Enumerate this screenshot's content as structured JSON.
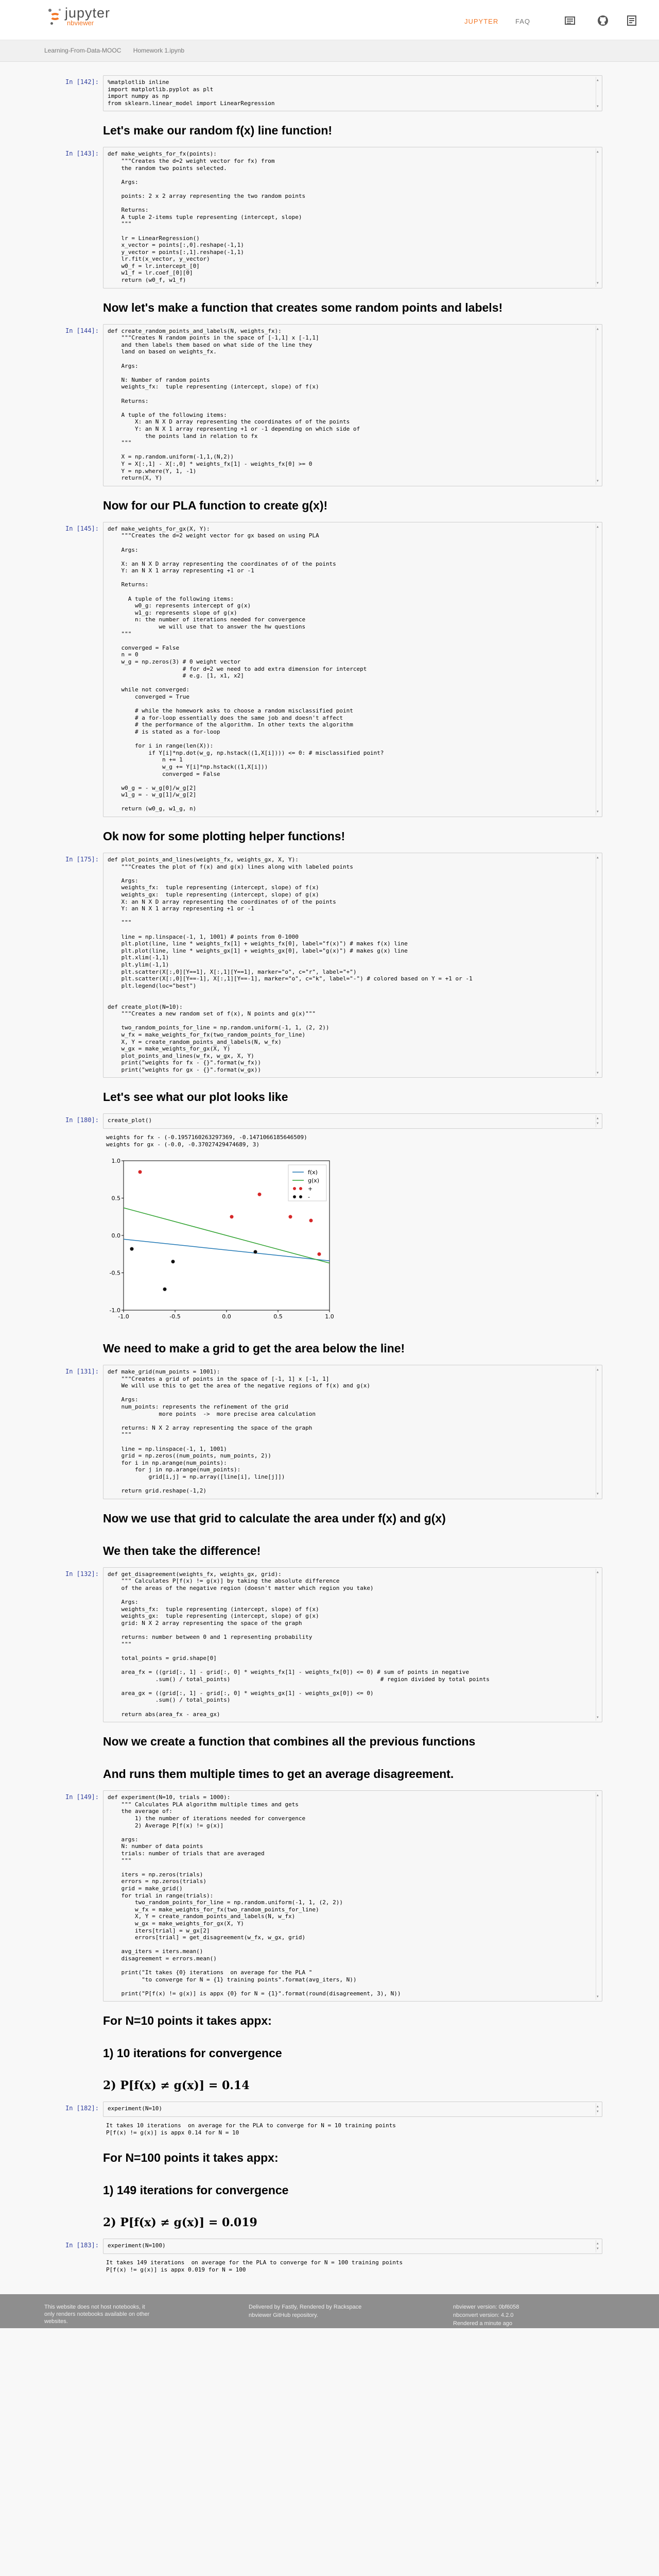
{
  "header": {
    "brand": "jupyter",
    "brand_sub": "nbviewer",
    "nav": [
      "JUPYTER",
      "FAQ"
    ],
    "icons": [
      "download-icon",
      "github-icon",
      "notebook-icon"
    ]
  },
  "breadcrumb": [
    "Learning-From-Data-MOOC",
    "Homework 1.ipynb"
  ],
  "cells": [
    {
      "type": "code",
      "prompt": "In [142]:",
      "code": "%matplotlib inline\nimport matplotlib.pyplot as plt\nimport numpy as np\nfrom sklearn.linear_model import LinearRegression"
    },
    {
      "type": "md",
      "text": "Let's make our random f(x) line function!"
    },
    {
      "type": "code",
      "prompt": "In [143]:",
      "code": "def make_weights_for_fx(points):\n    \"\"\"Creates the d=2 weight vector for fx) from\n    the random two points selected.\n\n    Args:\n\n    points: 2 x 2 array representing the two random points\n\n    Returns:\n    A tuple 2-items tuple representing (intercept, slope)\n    \"\"\"\n\n    lr = LinearRegression()\n    x_vector = points[:,0].reshape(-1,1)\n    y_vector = points[:,1].reshape(-1,1)\n    lr.fit(x_vector, y_vector)\n    w0_f = lr.intercept_[0]\n    w1_f = lr.coef_[0][0]\n    return (w0_f, w1_f)"
    },
    {
      "type": "md",
      "text": "Now let's make a function that creates some random points and labels!"
    },
    {
      "type": "code",
      "prompt": "In [144]:",
      "code": "def create_random_points_and_labels(N, weights_fx):\n    \"\"\"Creates N random points in the space of [-1,1] x [-1,1]\n    and then labels them based on what side of the line they\n    land on based on weights_fx.\n\n    Args:\n\n    N: Number of random points\n    weights_fx:  tuple representing (intercept, slope) of f(x)\n\n    Returns:\n\n    A tuple of the following items:\n        X: an N X D array representing the coordinates of of the points\n        Y: an N X 1 array representing +1 or -1 depending on which side of\n           the points land in relation to fx\n    \"\"\"\n\n    X = np.random.uniform(-1,1,(N,2))\n    Y = X[:,1] - X[:,0] * weights_fx[1] - weights_fx[0] >= 0\n    Y = np.where(Y, 1, -1)\n    return(X, Y)"
    },
    {
      "type": "md",
      "text": "Now for our PLA function to create g(x)!"
    },
    {
      "type": "code",
      "prompt": "In [145]:",
      "code": "def make_weights_for_gx(X, Y):\n    \"\"\"Creates the d=2 weight vector for gx based on using PLA\n\n    Args:\n\n    X: an N X D array representing the coordinates of of the points\n    Y: an N X 1 array representing +1 or -1\n\n    Returns:\n\n      A tuple of the following items:\n        w0_g: represents intercept of g(x)\n        w1_g: represents slope of g(x)\n        n: the number of iterations needed for convergence\n               we will use that to answer the hw questions\n    \"\"\"\n\n    converged = False\n    n = 0\n    w_g = np.zeros(3) # 0 weight vector\n                      # for d=2 we need to add extra dimension for intercept\n                      # e.g. [1, x1, x2]\n\n    while not converged:\n        converged = True\n\n        # while the homework asks to choose a random misclassified point\n        # a for-loop essentially does the same job and doesn't affect\n        # the performance of the algorithm. In other texts the algorithm\n        # is stated as a for-loop\n\n        for i in range(len(X)):\n            if Y[i]*np.dot(w_g, np.hstack((1,X[i]))) <= 0: # misclassified point?\n                n += 1\n                w_g += Y[i]*np.hstack((1,X[i]))\n                converged = False\n\n    w0_g = - w_g[0]/w_g[2]\n    w1_g = - w_g[1]/w_g[2]\n\n    return (w0_g, w1_g, n)"
    },
    {
      "type": "md",
      "text": "Ok now for some plotting helper functions!"
    },
    {
      "type": "code",
      "prompt": "In [175]:",
      "code": "def plot_points_and_lines(weights_fx, weights_gx, X, Y):\n    \"\"\"Creates the plot of f(x) and g(x) lines along with labeled points\n\n    Args:\n    weights_fx:  tuple representing (intercept, slope) of f(x)\n    weights_gx:  tuple representing (intercept, slope) of g(x)\n    X: an N X D array representing the coordinates of of the points\n    Y: an N X 1 array representing +1 or -1\n\n    \"\"\"\n\n    line = np.linspace(-1, 1, 1001) # points from 0-1000\n    plt.plot(line, line * weights_fx[1] + weights_fx[0], label=\"f(x)\") # makes f(x) line\n    plt.plot(line, line * weights_gx[1] + weights_gx[0], label=\"g(x)\") # makes g(x) line\n    plt.xlim(-1,1)\n    plt.ylim(-1,1)\n    plt.scatter(X[:,0][Y==1], X[:,1][Y==1], marker=\"o\", c=\"r\", label=\"+\")\n    plt.scatter(X[:,0][Y==-1], X[:,1][Y==-1], marker=\"o\", c=\"k\", label=\"-\") # colored based on Y = +1 or -1\n    plt.legend(loc=\"best\")\n\n\ndef create_plot(N=10):\n    \"\"\"Creates a new random set of f(x), N points and g(x)\"\"\"\n\n    two_random_points_for_line = np.random.uniform(-1, 1, (2, 2))\n    w_fx = make_weights_for_fx(two_random_points_for_line)\n    X, Y = create_random_points_and_labels(N, w_fx)\n    w_gx = make_weights_for_gx(X, Y)\n    plot_points_and_lines(w_fx, w_gx, X, Y)\n    print(\"weights for fx - {}\".format(w_fx))\n    print(\"weights for gx - {}\".format(w_gx))"
    },
    {
      "type": "md",
      "text": "Let's see what our plot looks like"
    },
    {
      "type": "code",
      "prompt": "In [180]:",
      "code": "create_plot()"
    },
    {
      "type": "output",
      "prompt": "",
      "text": "weights for fx - (-0.1957160263297369, -0.1471066185646509)\nweights for gx - (-0.0, -0.37027429474689, 3)"
    },
    {
      "type": "plot"
    },
    {
      "type": "md",
      "text": "We need to make a grid to get the area below the line!"
    },
    {
      "type": "code",
      "prompt": "In [131]:",
      "code": "def make_grid(num_points = 1001):\n    \"\"\"Creates a grid of points in the space of [-1, 1] x [-1, 1]\n    We will use this to get the area of the negative regions of f(x) and g(x)\n\n    Args:\n    num_points: represents the refinement of the grid\n               more points  ->  more precise area calculation\n\n    returns: N X 2 array representing the space of the graph\n    \"\"\"\n\n    line = np.linspace(-1, 1, 1001)\n    grid = np.zeros((num_points, num_points, 2))\n    for i in np.arange(num_points):\n        for j in np.arange(num_points):\n            grid[i,j] = np.array([line[i], line[j]])\n\n    return grid.reshape(-1,2)"
    },
    {
      "type": "md",
      "text": "Now we use that grid to calculate the area under f(x) and g(x)"
    },
    {
      "type": "md",
      "text": "We then take the difference!"
    },
    {
      "type": "code",
      "prompt": "In [132]:",
      "code": "def get_disagreement(weights_fx, weights_gx, grid):\n    \"\"\" Calculates P[f(x) != g(x)] by taking the absolute difference\n    of the areas of the negative region (doesn't matter which region you take)\n\n    Args:\n    weights_fx:  tuple representing (intercept, slope) of f(x)\n    weights_gx:  tuple representing (intercept, slope) of g(x)\n    grid: N X 2 array representing the space of the graph\n\n    returns: number between 0 and 1 representing probability\n    \"\"\"\n\n    total_points = grid.shape[0]\n\n    area_fx = ((grid[:, 1] - grid[:, 0] * weights_fx[1] - weights_fx[0]) <= 0) # sum of points in negative\n              .sum() / total_points)                                            # region divided by total points\n\n    area_gx = ((grid[:, 1] - grid[:, 0] * weights_gx[1] - weights_gx[0]) <= 0)\n              .sum() / total_points)\n\n    return abs(area_fx - area_gx)"
    },
    {
      "type": "md",
      "text": "Now we create a function that combines all the previous functions"
    },
    {
      "type": "md",
      "text": "And runs them multiple times to get an average disagreement."
    },
    {
      "type": "code",
      "prompt": "In [149]:",
      "code": "def experiment(N=10, trials = 1000):\n    \"\"\" Calculates PLA algorithm multiple times and gets\n    the average of:\n        1) the number of iterations needed for convergence\n        2) Average P[f(x) != g(x)]\n\n    args:\n    N: number of data points\n    trials: number of trials that are averaged\n    \"\"\"\n\n    iters = np.zeros(trials)\n    errors = np.zeros(trials)\n    grid = make_grid()\n    for trial in range(trials):\n        two_random_points_for_line = np.random.uniform(-1, 1, (2, 2))\n        w_fx = make_weights_for_fx(two_random_points_for_line)\n        X, Y = create_random_points_and_labels(N, w_fx)\n        w_gx = make_weights_for_gx(X, Y)\n        iters[trial] = w_gx[2]\n        errors[trial] = get_disagreement(w_fx, w_gx, grid)\n\n    avg_iters = iters.mean()\n    disagreement = errors.mean()\n\n    print(\"It takes {0} iterations  on average for the PLA \"\n          \"to converge for N = {1} training points\".format(avg_iters, N))\n\n    print(\"P[f(x) != g(x)] is appx {0} for N = {1}\".format(round(disagreement, 3), N))"
    },
    {
      "type": "md",
      "text": "For N=10 points it takes appx:"
    },
    {
      "type": "md",
      "text": "1) 10 iterations for convergence"
    },
    {
      "type": "mdmath",
      "text": "2) P[f(x)  ≠  g(x)] = 0.14"
    },
    {
      "type": "code",
      "prompt": "In [182]:",
      "code": "experiment(N=10)"
    },
    {
      "type": "output",
      "prompt": "",
      "text": "It takes 10 iterations  on average for the PLA to converge for N = 10 training points\nP[f(x) != g(x)] is appx 0.14 for N = 10"
    },
    {
      "type": "md",
      "text": "For N=100 points it takes appx:"
    },
    {
      "type": "md",
      "text": "1) 149 iterations for convergence"
    },
    {
      "type": "mdmath",
      "text": "2) P[f(x)  ≠  g(x)] = 0.019"
    },
    {
      "type": "code",
      "prompt": "In [183]:",
      "code": "experiment(N=100)"
    },
    {
      "type": "output",
      "prompt": "",
      "text": "It takes 149 iterations  on average for the PLA to converge for N = 100 training points\nP[f(x) != g(x)] is appx 0.019 for N = 100"
    }
  ],
  "chart_data": {
    "type": "scatter",
    "xlim": [
      -1,
      1
    ],
    "ylim": [
      -1,
      1
    ],
    "xticks": [
      "-1.0",
      "-0.5",
      "0.0",
      "0.5",
      "1.0"
    ],
    "yticks": [
      "1.0",
      "0.5",
      "0.0",
      "-0.5",
      "-1.0"
    ],
    "lines": [
      {
        "name": "f(x)",
        "color": "#1f77b4",
        "x": [
          -1,
          1
        ],
        "y": [
          -0.05,
          -0.34
        ]
      },
      {
        "name": "g(x)",
        "color": "#2ca02c",
        "x": [
          -1,
          1
        ],
        "y": [
          0.37,
          -0.37
        ]
      }
    ],
    "series": [
      {
        "name": "+",
        "color": "#d62728",
        "points": [
          [
            -0.84,
            0.85
          ],
          [
            0.32,
            0.55
          ],
          [
            0.62,
            0.25
          ],
          [
            0.82,
            0.2
          ],
          [
            0.05,
            0.25
          ],
          [
            0.9,
            -0.25
          ]
        ]
      },
      {
        "name": "-",
        "color": "#111111",
        "points": [
          [
            -0.92,
            -0.18
          ],
          [
            -0.52,
            -0.35
          ],
          [
            -0.6,
            -0.72
          ],
          [
            0.28,
            -0.22
          ]
        ]
      }
    ],
    "legend": "top-right",
    "grid": false
  },
  "footer": {
    "left": "This website does not host notebooks, it only renders notebooks available on other websites.",
    "mid1": "Delivered by Fastly, Rendered by Rackspace",
    "mid2": "nbviewer GitHub repository.",
    "right1": "nbviewer version: 0bf6058",
    "right2": "nbconvert version: 4.2.0",
    "right3": "Rendered a minute ago"
  }
}
